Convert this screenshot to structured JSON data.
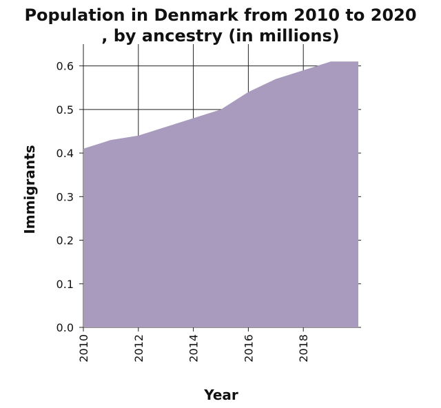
{
  "chart_data": {
    "type": "area",
    "title_line1": "Population in Denmark from 2010 to 2020",
    "title_line2": ", by ancestry (in millions)",
    "xlabel": "Year",
    "ylabel": "Immigrants",
    "x": [
      2010,
      2011,
      2012,
      2013,
      2014,
      2015,
      2016,
      2017,
      2018,
      2019,
      2020
    ],
    "values": [
      0.41,
      0.43,
      0.44,
      0.46,
      0.48,
      0.5,
      0.54,
      0.57,
      0.59,
      0.61,
      0.61
    ],
    "xlim": [
      2010,
      2020
    ],
    "ylim": [
      0,
      0.65
    ],
    "xticks": [
      2010,
      2012,
      2014,
      2016,
      2018
    ],
    "xtick_labels": [
      "2010",
      "2012",
      "2014",
      "2016",
      "2018"
    ],
    "yticks": [
      0.0,
      0.1,
      0.2,
      0.3,
      0.4,
      0.5,
      0.6
    ],
    "ytick_labels": [
      "0.0",
      "0.1",
      "0.2",
      "0.3",
      "0.4",
      "0.5",
      "0.6"
    ],
    "grid": true,
    "fill_color": "#a89bbd"
  }
}
